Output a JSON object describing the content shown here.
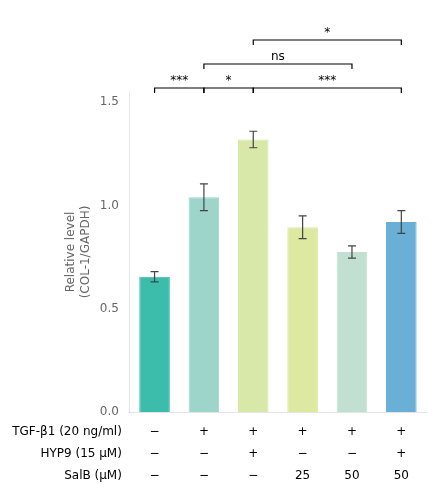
{
  "chart_data": {
    "type": "bar",
    "categories": [
      null,
      null,
      null,
      null,
      null,
      null
    ],
    "values": [
      0.655,
      1.04,
      1.32,
      0.895,
      0.775,
      0.92
    ],
    "errors": [
      0.025,
      0.065,
      0.04,
      0.055,
      0.03,
      0.055
    ],
    "colors": [
      "#3cbcab",
      "#9ed5cb",
      "#d8e8a8",
      "#dde8a0",
      "#c2e0d2",
      "#6aafd6"
    ],
    "ylabel": "Relative level\n(COL-1/GAPDH)",
    "ylim": [
      0.0,
      1.55
    ],
    "yticks": [
      {
        "value": 0,
        "label": "0.0"
      },
      0.5,
      {
        "value": 1,
        "label": "1.0"
      },
      1.5
    ],
    "grid": false,
    "tick_labels": "y",
    "annotations": [
      {
        "text": "***",
        "from": 0,
        "to": 1
      },
      {
        "text": "*",
        "from": 1,
        "to": 2
      },
      {
        "text": "***",
        "from": 2,
        "to": 5
      },
      {
        "text": "ns",
        "from": 1,
        "to": 4
      },
      {
        "text": "*",
        "from": 2,
        "to": 5
      }
    ],
    "table": [
      {
        "label": "TGF-β1 (20 ng/ml)",
        "values": [
          "−",
          "+",
          "+",
          "+",
          "+",
          "+"
        ]
      },
      {
        "label": "HYP9 (15 μM)",
        "values": [
          "−",
          "−",
          "+",
          "−",
          "−",
          "+"
        ]
      },
      {
        "label": "SalB (μM)",
        "values": [
          "−",
          "−",
          "−",
          "25",
          "50",
          "50"
        ]
      }
    ]
  }
}
